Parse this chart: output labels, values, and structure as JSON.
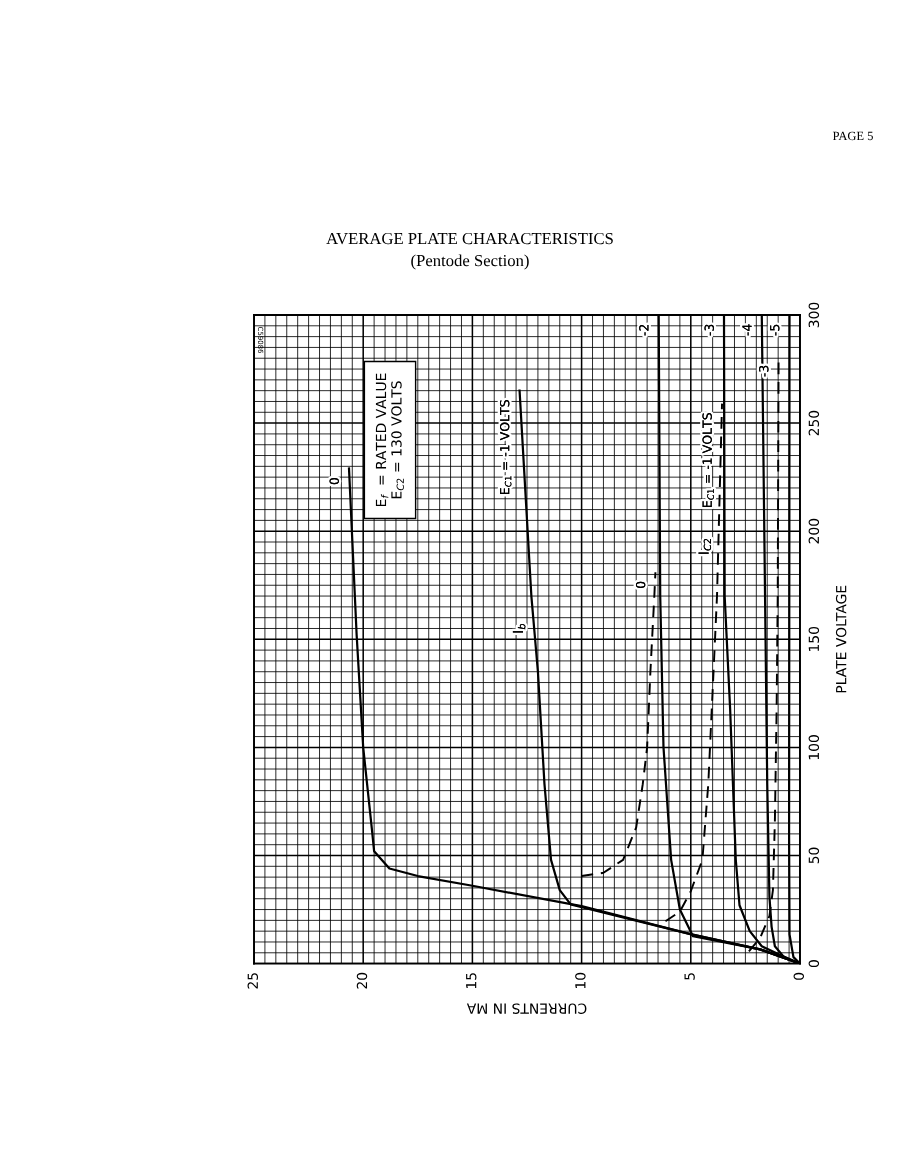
{
  "chart_data": {
    "type": "line",
    "title": "AVERAGE PLATE CHARACTERISTICS",
    "subtitle": "(Pentode Section)",
    "xlabel": "CURRENTS IN MA",
    "ylabel": "PLATE VOLTAGE",
    "xlim": [
      25,
      0
    ],
    "xticks": [
      25,
      20,
      15,
      10,
      5,
      0
    ],
    "ylim": [
      0,
      300
    ],
    "yticks": [
      0,
      50,
      100,
      150,
      200,
      250,
      300
    ],
    "grid": true,
    "annotations": [
      "PAGE 5",
      "C59086",
      "E$_{f}$  = RATED VALUE\nE$_{C2}$ = 130 VOLTS",
      {
        "text": "I$_{b}$",
        "x": 12.2,
        "y": 155
      },
      {
        "text": "I$_{C2}$",
        "x": 3.7,
        "y": 193
      }
    ],
    "series": [
      {
        "name": "0",
        "color": "#000000",
        "line_style": "solid",
        "values": [
          0,
          6.6,
          13.5,
          26.6,
          36,
          40.5,
          44,
          52,
          62,
          100,
          152,
          229
        ],
        "x": [
          0,
          1.83,
          4.97,
          10,
          15,
          17.5,
          18.8,
          19.5,
          19.6,
          20,
          20.3,
          20.65
        ]
      },
      {
        "name": "E$_{C1}$ = -1 VOLTS",
        "color": "#000000",
        "line_style": "solid",
        "values": [
          0,
          6.6,
          13.5,
          27.4,
          34,
          48,
          83,
          135,
          170,
          265
        ],
        "x": [
          0,
          1.83,
          4.97,
          10.5,
          11,
          11.4,
          11.7,
          12,
          12.3,
          12.84
        ]
      },
      {
        "name": "-2",
        "color": "#000000",
        "line_style": "solid",
        "values": [
          0,
          6.6,
          12.7,
          25,
          48,
          100,
          170,
          300
        ],
        "x": [
          0,
          1.83,
          4.9,
          5.5,
          5.9,
          6.25,
          6.4,
          6.47
        ]
      },
      {
        "name": "-3",
        "color": "#000000",
        "line_style": "solid",
        "values": [
          0,
          4,
          8,
          15,
          27,
          48,
          118,
          170,
          300
        ],
        "x": [
          0,
          0.9,
          1.75,
          2.3,
          2.77,
          2.94,
          3.2,
          3.45,
          3.48
        ]
      },
      {
        "name": "-4",
        "color": "#000000",
        "line_style": "solid",
        "values": [
          0,
          3,
          8,
          17,
          31,
          83,
          300
        ],
        "x": [
          0,
          0.73,
          1.15,
          1.3,
          1.4,
          1.5,
          1.75
        ]
      },
      {
        "name": "-5",
        "color": "#000000",
        "line_style": "solid",
        "values": [
          0,
          3,
          13.5,
          60,
          300
        ],
        "x": [
          0,
          0.3,
          0.48,
          0.5,
          0.48
        ]
      },
      {
        "name": "0",
        "color": "#000000",
        "line_style": "dashed",
        "values": [
          40.5,
          42,
          48,
          63,
          83,
          100,
          135,
          170,
          181
        ],
        "x": [
          10,
          9,
          8.1,
          7.5,
          7.2,
          7,
          6.85,
          6.67,
          6.62
        ]
      },
      {
        "name": "E$_{C1}$ = -1 VOLTS",
        "color": "#000000",
        "line_style": "dashed",
        "values": [
          19.6,
          24,
          33.5,
          48,
          83,
          135,
          170,
          259
        ],
        "x": [
          6.16,
          5.5,
          5,
          4.47,
          4.2,
          3.96,
          3.8,
          3.57
        ]
      },
      {
        "name": "-3",
        "color": "#000000",
        "line_style": "dashed",
        "values": [
          5.7,
          11.8,
          22,
          34,
          66,
          118,
          170,
          281
        ],
        "x": [
          2.34,
          1.83,
          1.4,
          1.24,
          1.15,
          1.07,
          1.02,
          0.98
        ]
      }
    ]
  }
}
